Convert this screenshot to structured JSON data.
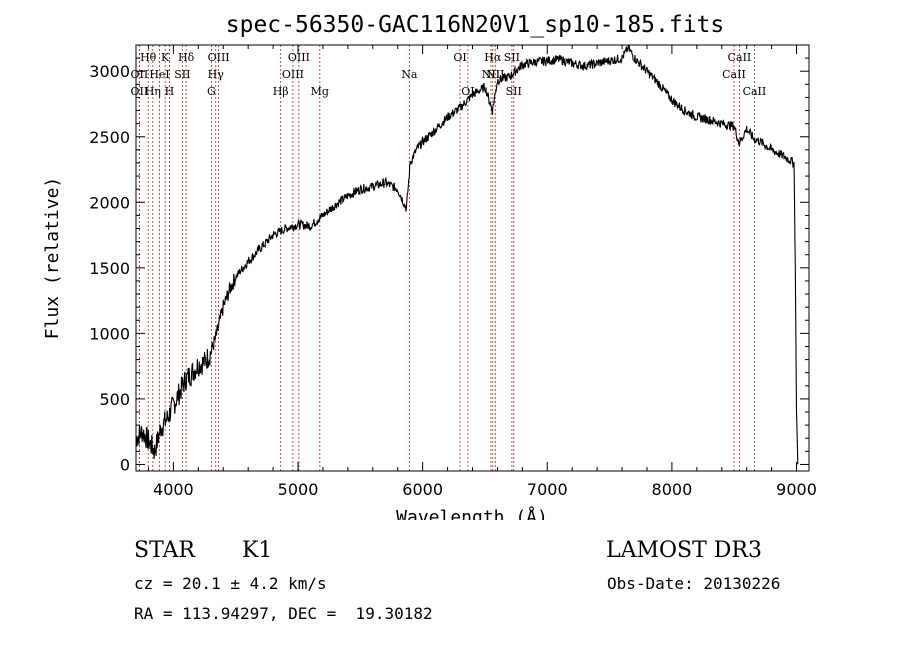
{
  "chart_data": {
    "type": "line",
    "title": "spec-56350-GAC116N20V1_sp10-185.fits",
    "xlabel": "Wavelength (Å)",
    "ylabel": "Flux (relative)",
    "xlim": [
      3700,
      9100
    ],
    "ylim": [
      -50,
      3200
    ],
    "xticks": [
      4000,
      5000,
      6000,
      7000,
      8000,
      9000
    ],
    "xtick_labels": [
      "4000",
      "5000",
      "6000",
      "7000",
      "8000",
      "9000"
    ],
    "yticks": [
      0,
      500,
      1000,
      1500,
      2000,
      2500,
      3000
    ],
    "ytick_labels": [
      "0",
      "500",
      "1000",
      "1500",
      "2000",
      "2500",
      "3000"
    ],
    "series": [
      {
        "name": "flux",
        "x": [
          3700,
          3750,
          3800,
          3850,
          3900,
          3950,
          4000,
          4050,
          4100,
          4150,
          4200,
          4250,
          4300,
          4350,
          4400,
          4450,
          4500,
          4600,
          4700,
          4800,
          4900,
          5000,
          5100,
          5200,
          5300,
          5400,
          5500,
          5600,
          5700,
          5800,
          5870,
          5900,
          5950,
          6000,
          6100,
          6200,
          6300,
          6400,
          6500,
          6560,
          6600,
          6700,
          6800,
          6900,
          7000,
          7100,
          7200,
          7300,
          7400,
          7500,
          7600,
          7650,
          7700,
          7800,
          7900,
          8000,
          8100,
          8200,
          8300,
          8400,
          8500,
          8540,
          8600,
          8660,
          8700,
          8800,
          8900,
          8980,
          8990,
          9000,
          9010
        ],
        "y": [
          200,
          250,
          180,
          100,
          280,
          350,
          450,
          550,
          650,
          700,
          760,
          780,
          850,
          1000,
          1200,
          1330,
          1430,
          1550,
          1650,
          1750,
          1800,
          1830,
          1820,
          1900,
          1980,
          2050,
          2100,
          2120,
          2150,
          2100,
          1950,
          2300,
          2400,
          2460,
          2550,
          2650,
          2720,
          2820,
          2880,
          2700,
          2930,
          2960,
          3050,
          3070,
          3080,
          3090,
          3060,
          3040,
          3060,
          3080,
          3100,
          3180,
          3100,
          3000,
          2900,
          2780,
          2700,
          2650,
          2630,
          2600,
          2580,
          2450,
          2560,
          2480,
          2470,
          2400,
          2350,
          2300,
          1500,
          400,
          0
        ]
      }
    ],
    "line_colors": {
      "spectrum": "#000000",
      "lines": "#b22222"
    },
    "spectral_lines": [
      {
        "name": "Hθ",
        "wave": 3798,
        "row": 1
      },
      {
        "name": "K",
        "wave": 3934,
        "row": 1
      },
      {
        "name": "Hδ",
        "wave": 4102,
        "row": 1
      },
      {
        "name": "OIII",
        "wave": 4363,
        "row": 1
      },
      {
        "name": "OIII",
        "wave": 5007,
        "row": 1
      },
      {
        "name": "OI",
        "wave": 6300,
        "row": 1
      },
      {
        "name": "Hα",
        "wave": 6563,
        "row": 1
      },
      {
        "name": "SII",
        "wave": 6716,
        "row": 1
      },
      {
        "name": "CaII",
        "wave": 8542,
        "row": 1
      },
      {
        "name": "OII",
        "wave": 3727,
        "row": 2
      },
      {
        "name": "HeI",
        "wave": 3889,
        "row": 2
      },
      {
        "name": "SII",
        "wave": 4072,
        "row": 2
      },
      {
        "name": "Hγ",
        "wave": 4340,
        "row": 2
      },
      {
        "name": "OIII",
        "wave": 4959,
        "row": 2
      },
      {
        "name": "Na",
        "wave": 5893,
        "row": 2
      },
      {
        "name": "NII",
        "wave": 6548,
        "row": 2
      },
      {
        "name": "NII",
        "wave": 6583,
        "row": 2
      },
      {
        "name": "CaII",
        "wave": 8498,
        "row": 2
      },
      {
        "name": "OII",
        "wave": 3727,
        "row": 3
      },
      {
        "name": "Hη",
        "wave": 3835,
        "row": 3
      },
      {
        "name": "H",
        "wave": 3968,
        "row": 3
      },
      {
        "name": "G",
        "wave": 4305,
        "row": 3
      },
      {
        "name": "Hβ",
        "wave": 4861,
        "row": 3
      },
      {
        "name": "Mg",
        "wave": 5175,
        "row": 3
      },
      {
        "name": "OI",
        "wave": 6363,
        "row": 3
      },
      {
        "name": "SII",
        "wave": 6731,
        "row": 3
      },
      {
        "name": "CaII",
        "wave": 8662,
        "row": 3
      }
    ]
  },
  "info": {
    "object_class": "STAR",
    "subclass": "K1",
    "survey": "LAMOST DR3",
    "cz": "cz = 20.1 ± 4.2 km/s",
    "obs_date": "Obs-Date: 20130226",
    "coords": "RA = 113.94297, DEC =  19.30182"
  }
}
